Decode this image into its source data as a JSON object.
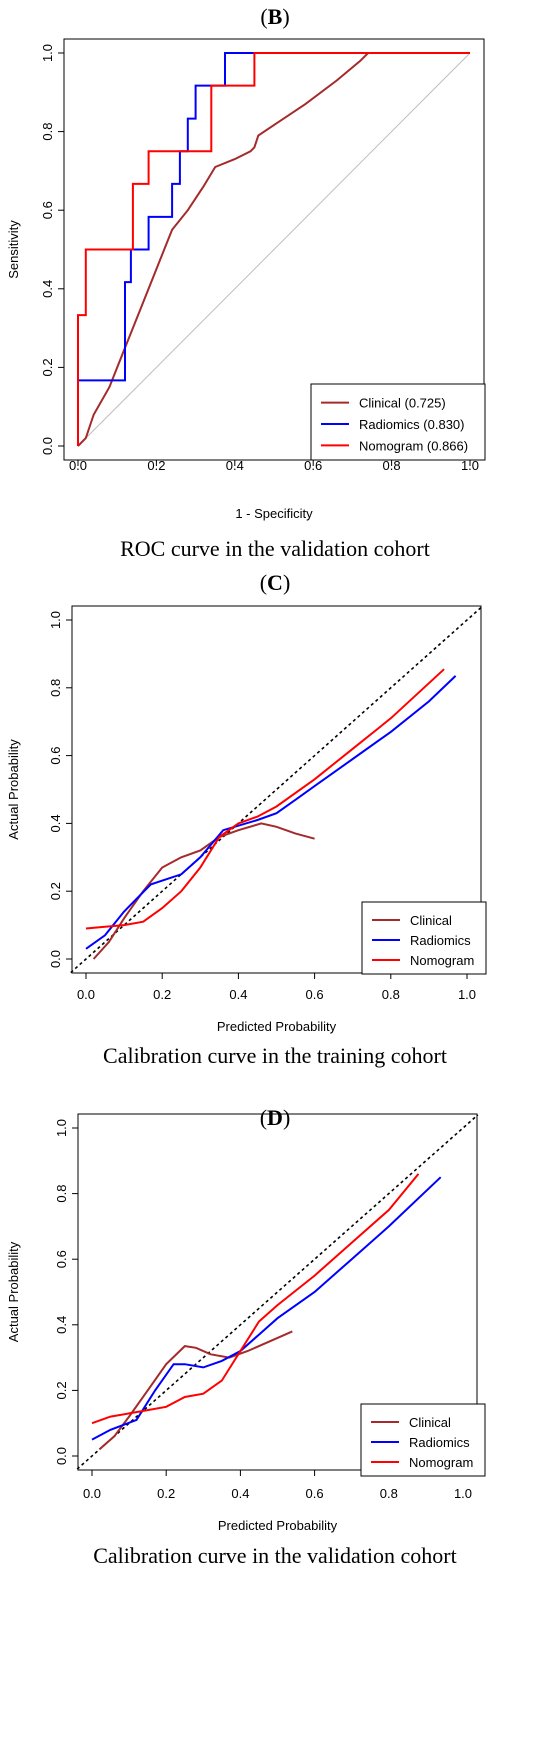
{
  "chart_data": [
    {
      "id": "B",
      "type": "line",
      "panel_letter": "B",
      "caption": "ROC curve in the validation cohort",
      "xlabel": "1 - Specificity",
      "ylabel": "Sensitivity",
      "xlim": [
        0,
        1
      ],
      "ylim": [
        0,
        1
      ],
      "xticks": [
        "0.0",
        "0.2",
        "0.4",
        "0.6",
        "0.8",
        "1.0"
      ],
      "yticks": [
        "0.0",
        "0.2",
        "0.4",
        "0.6",
        "0.8",
        "1.0"
      ],
      "grid": false,
      "legend_position": "bottom-right",
      "reference_line": "diagonal",
      "series": [
        {
          "name": "Clinical (0.725)",
          "color": "#a52a2a",
          "step": false,
          "points": [
            [
              0,
              0
            ],
            [
              0.02,
              0.02
            ],
            [
              0.04,
              0.08
            ],
            [
              0.08,
              0.15
            ],
            [
              0.12,
              0.25
            ],
            [
              0.16,
              0.35
            ],
            [
              0.2,
              0.45
            ],
            [
              0.22,
              0.5
            ],
            [
              0.24,
              0.55
            ],
            [
              0.28,
              0.6
            ],
            [
              0.32,
              0.66
            ],
            [
              0.35,
              0.71
            ],
            [
              0.4,
              0.73
            ],
            [
              0.44,
              0.75
            ],
            [
              0.45,
              0.76
            ],
            [
              0.46,
              0.79
            ],
            [
              0.52,
              0.83
            ],
            [
              0.58,
              0.87
            ],
            [
              0.66,
              0.93
            ],
            [
              0.72,
              0.98
            ],
            [
              0.74,
              1.0
            ],
            [
              1.0,
              1.0
            ]
          ]
        },
        {
          "name": "Radiomics (0.830)",
          "color": "#0000ff",
          "step": true,
          "points": [
            [
              0,
              0
            ],
            [
              0,
              0.167
            ],
            [
              0.12,
              0.167
            ],
            [
              0.12,
              0.417
            ],
            [
              0.135,
              0.417
            ],
            [
              0.135,
              0.5
            ],
            [
              0.18,
              0.5
            ],
            [
              0.18,
              0.583
            ],
            [
              0.24,
              0.583
            ],
            [
              0.24,
              0.667
            ],
            [
              0.26,
              0.667
            ],
            [
              0.26,
              0.75
            ],
            [
              0.28,
              0.75
            ],
            [
              0.28,
              0.833
            ],
            [
              0.3,
              0.833
            ],
            [
              0.3,
              0.917
            ],
            [
              0.34,
              0.917
            ],
            [
              0.34,
              0.917
            ],
            [
              0.375,
              0.917
            ],
            [
              0.375,
              1.0
            ],
            [
              1.0,
              1.0
            ]
          ]
        },
        {
          "name": "Nomogram (0.866)",
          "color": "#ff0000",
          "step": true,
          "points": [
            [
              0,
              0
            ],
            [
              0,
              0.333
            ],
            [
              0.02,
              0.333
            ],
            [
              0.02,
              0.5
            ],
            [
              0.14,
              0.5
            ],
            [
              0.14,
              0.667
            ],
            [
              0.18,
              0.667
            ],
            [
              0.18,
              0.75
            ],
            [
              0.34,
              0.75
            ],
            [
              0.34,
              0.917
            ],
            [
              0.45,
              0.917
            ],
            [
              0.45,
              1.0
            ],
            [
              1.0,
              1.0
            ]
          ]
        }
      ]
    },
    {
      "id": "C",
      "type": "line",
      "panel_letter": "C",
      "caption": "Calibration curve in the training cohort",
      "xlabel": "Predicted Probability",
      "ylabel": "Actual Probability",
      "xlim": [
        0,
        1
      ],
      "ylim": [
        0,
        1
      ],
      "xticks": [
        "0.0",
        "0.2",
        "0.4",
        "0.6",
        "0.8",
        "1.0"
      ],
      "yticks": [
        "0.0",
        "0.2",
        "0.4",
        "0.6",
        "0.8",
        "1.0"
      ],
      "grid": false,
      "legend_position": "bottom-right",
      "reference_line": "dotted diagonal",
      "series": [
        {
          "name": "Clinical",
          "color": "#a52a2a",
          "step": false,
          "points": [
            [
              0.02,
              0.0
            ],
            [
              0.06,
              0.05
            ],
            [
              0.1,
              0.12
            ],
            [
              0.15,
              0.2
            ],
            [
              0.2,
              0.27
            ],
            [
              0.25,
              0.3
            ],
            [
              0.3,
              0.32
            ],
            [
              0.35,
              0.36
            ],
            [
              0.4,
              0.38
            ],
            [
              0.46,
              0.4
            ],
            [
              0.5,
              0.39
            ],
            [
              0.55,
              0.37
            ],
            [
              0.6,
              0.355
            ]
          ]
        },
        {
          "name": "Radiomics",
          "color": "#0000ff",
          "step": false,
          "points": [
            [
              0,
              0.03
            ],
            [
              0.05,
              0.07
            ],
            [
              0.1,
              0.14
            ],
            [
              0.17,
              0.22
            ],
            [
              0.25,
              0.25
            ],
            [
              0.3,
              0.3
            ],
            [
              0.36,
              0.38
            ],
            [
              0.45,
              0.41
            ],
            [
              0.5,
              0.43
            ],
            [
              0.55,
              0.47
            ],
            [
              0.6,
              0.51
            ],
            [
              0.7,
              0.59
            ],
            [
              0.8,
              0.67
            ],
            [
              0.9,
              0.76
            ],
            [
              0.97,
              0.835
            ]
          ]
        },
        {
          "name": "Nomogram",
          "color": "#ff0000",
          "step": false,
          "points": [
            [
              0,
              0.09
            ],
            [
              0.05,
              0.095
            ],
            [
              0.1,
              0.1
            ],
            [
              0.15,
              0.11
            ],
            [
              0.2,
              0.15
            ],
            [
              0.25,
              0.2
            ],
            [
              0.3,
              0.27
            ],
            [
              0.35,
              0.36
            ],
            [
              0.4,
              0.4
            ],
            [
              0.45,
              0.42
            ],
            [
              0.5,
              0.45
            ],
            [
              0.6,
              0.53
            ],
            [
              0.7,
              0.62
            ],
            [
              0.8,
              0.71
            ],
            [
              0.94,
              0.855
            ]
          ]
        }
      ]
    },
    {
      "id": "D",
      "type": "line",
      "panel_letter": "D",
      "caption": "Calibration curve in the validation cohort",
      "xlabel": "Predicted Probability",
      "ylabel": "Actual Probability",
      "xlim": [
        0,
        1
      ],
      "ylim": [
        0,
        1
      ],
      "xticks": [
        "0.0",
        "0.2",
        "0.4",
        "0.6",
        "0.8",
        "1.0"
      ],
      "yticks": [
        "0.0",
        "0.2",
        "0.4",
        "0.6",
        "0.8",
        "1.0"
      ],
      "grid": false,
      "legend_position": "bottom-right",
      "reference_line": "dotted diagonal",
      "series": [
        {
          "name": "Clinical",
          "color": "#a52a2a",
          "step": false,
          "points": [
            [
              0.02,
              0.02
            ],
            [
              0.06,
              0.06
            ],
            [
              0.1,
              0.12
            ],
            [
              0.15,
              0.2
            ],
            [
              0.2,
              0.28
            ],
            [
              0.25,
              0.335
            ],
            [
              0.28,
              0.33
            ],
            [
              0.32,
              0.31
            ],
            [
              0.37,
              0.3
            ],
            [
              0.42,
              0.32
            ],
            [
              0.48,
              0.35
            ],
            [
              0.54,
              0.38
            ]
          ]
        },
        {
          "name": "Radiomics",
          "color": "#0000ff",
          "step": false,
          "points": [
            [
              0,
              0.05
            ],
            [
              0.05,
              0.08
            ],
            [
              0.12,
              0.11
            ],
            [
              0.17,
              0.2
            ],
            [
              0.22,
              0.28
            ],
            [
              0.25,
              0.28
            ],
            [
              0.3,
              0.27
            ],
            [
              0.35,
              0.29
            ],
            [
              0.4,
              0.32
            ],
            [
              0.45,
              0.37
            ],
            [
              0.5,
              0.42
            ],
            [
              0.6,
              0.5
            ],
            [
              0.7,
              0.6
            ],
            [
              0.8,
              0.7
            ],
            [
              0.94,
              0.85
            ]
          ]
        },
        {
          "name": "Nomogram",
          "color": "#ff0000",
          "step": false,
          "points": [
            [
              0,
              0.1
            ],
            [
              0.05,
              0.12
            ],
            [
              0.1,
              0.13
            ],
            [
              0.15,
              0.14
            ],
            [
              0.2,
              0.15
            ],
            [
              0.25,
              0.18
            ],
            [
              0.3,
              0.19
            ],
            [
              0.35,
              0.23
            ],
            [
              0.4,
              0.32
            ],
            [
              0.45,
              0.41
            ],
            [
              0.5,
              0.46
            ],
            [
              0.6,
              0.55
            ],
            [
              0.7,
              0.65
            ],
            [
              0.8,
              0.75
            ],
            [
              0.88,
              0.86
            ]
          ]
        }
      ]
    }
  ]
}
